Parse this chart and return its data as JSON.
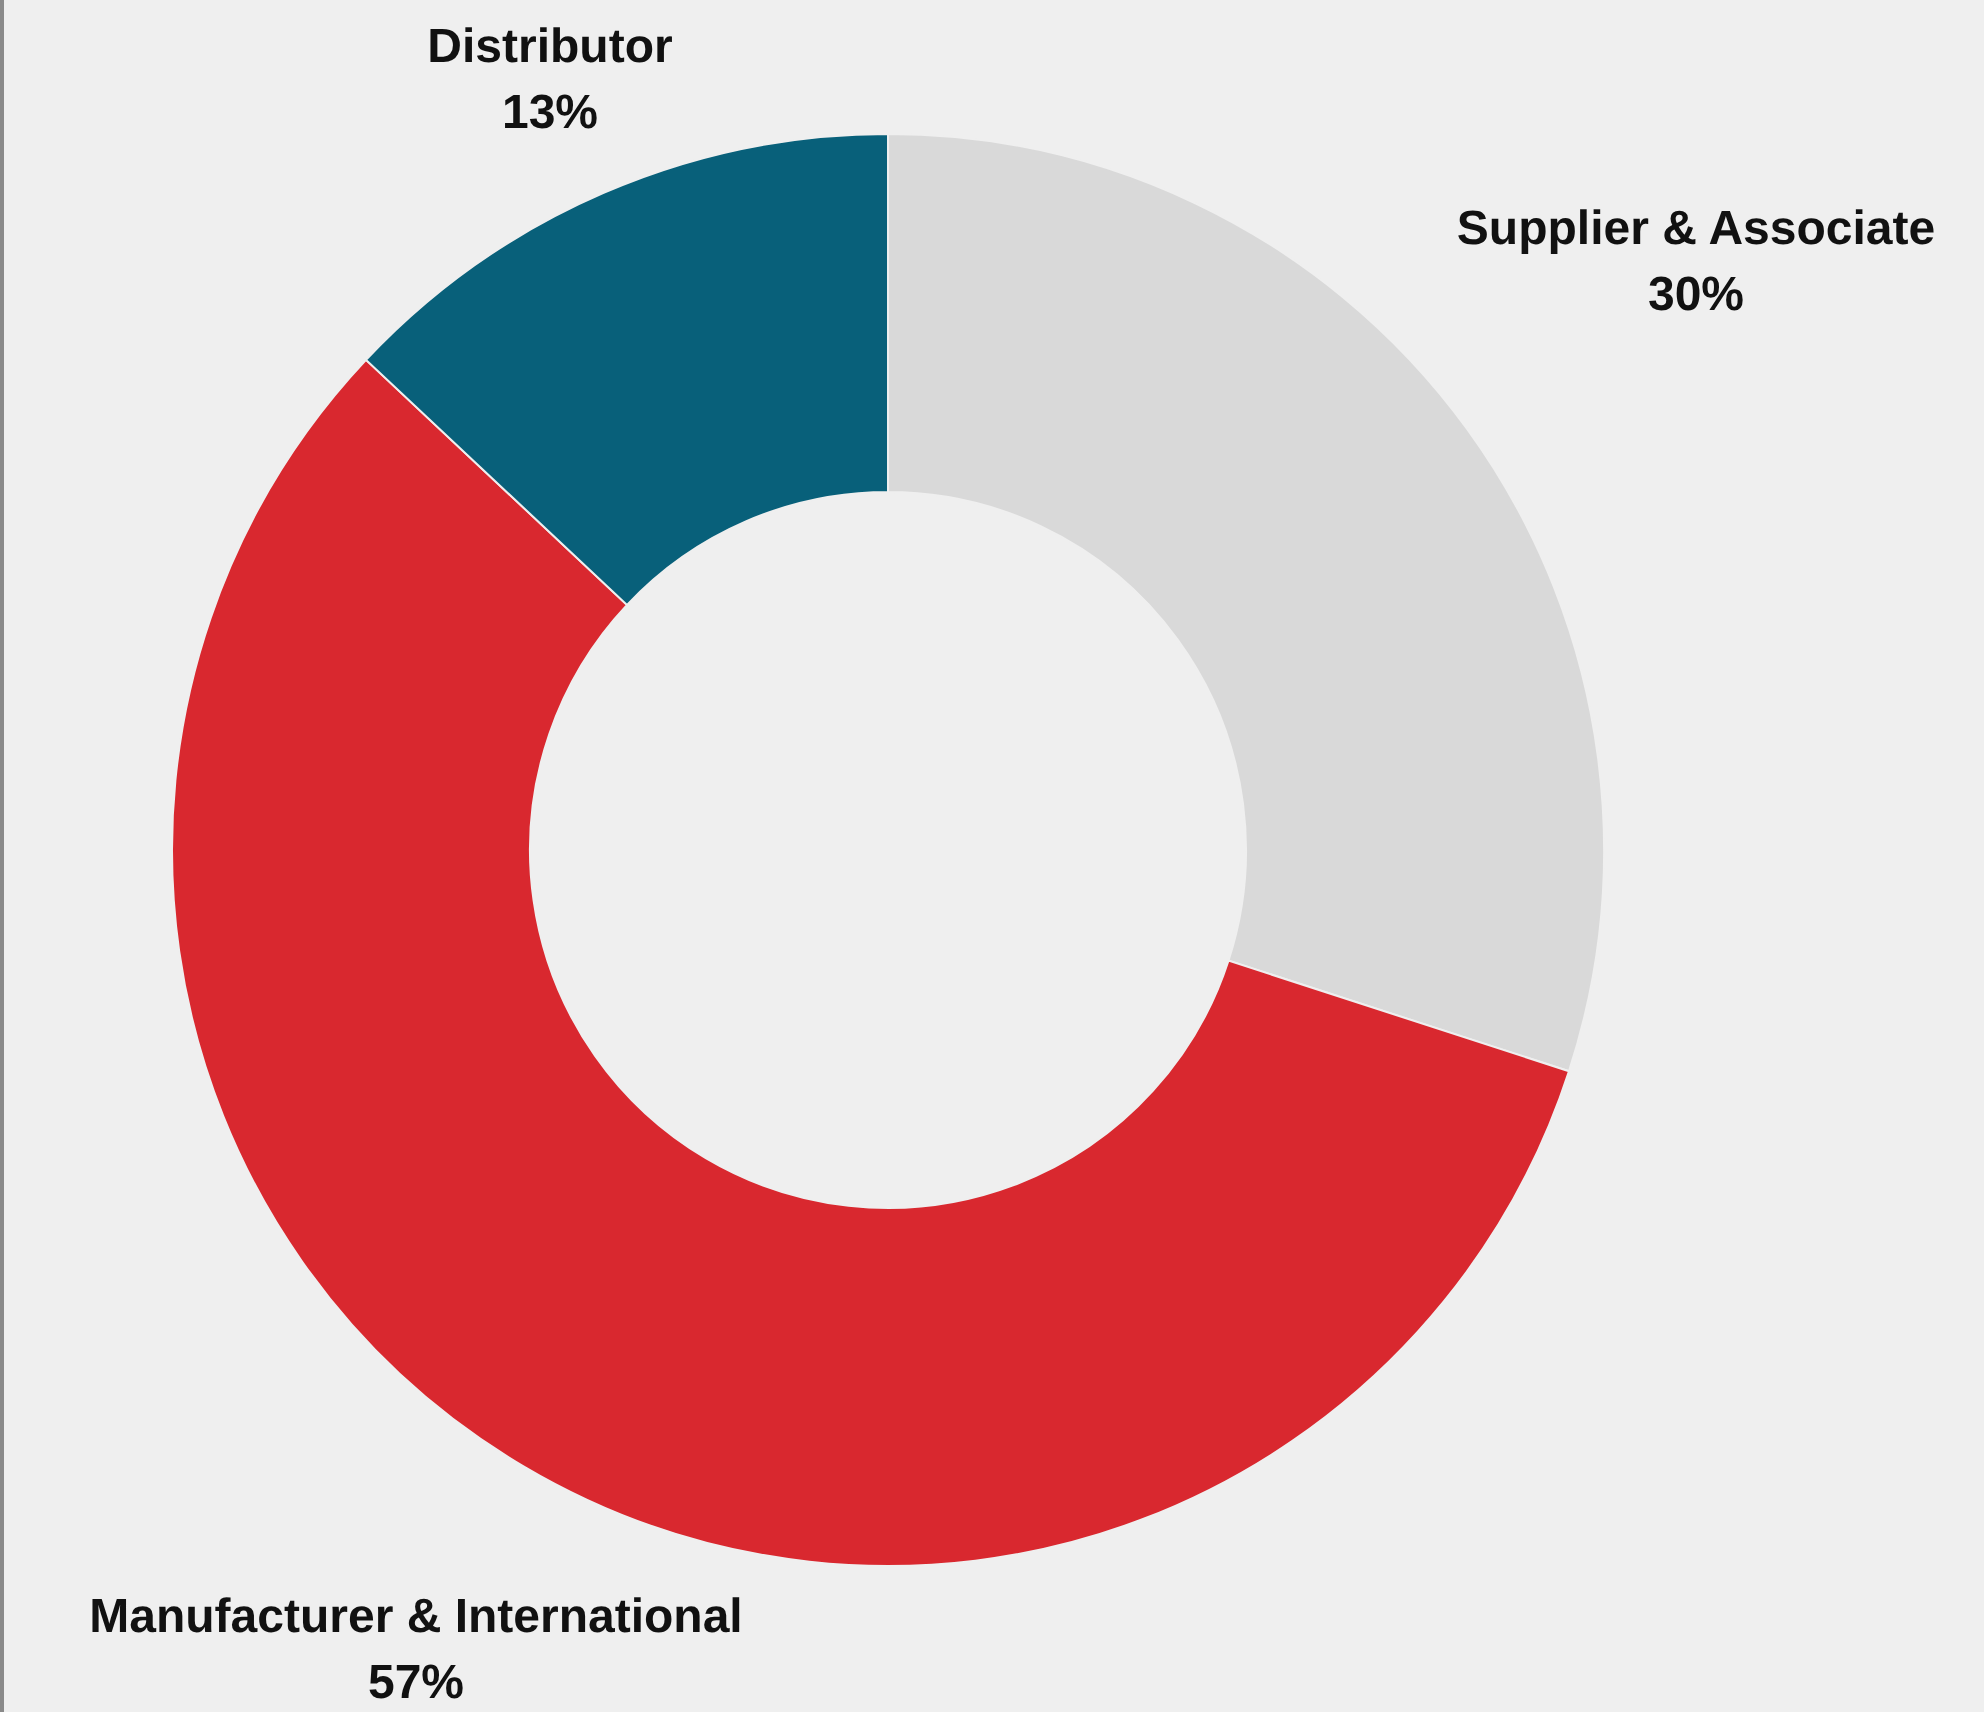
{
  "chart_data": {
    "type": "donut",
    "categories": [
      "Supplier & Associate",
      "Manufacturer & International",
      "Distributor"
    ],
    "values": [
      30,
      57,
      13
    ],
    "value_labels": [
      "30%",
      "57%",
      "13%"
    ],
    "colors": [
      "#d9d9d9",
      "#d9282f",
      "#08607a"
    ]
  }
}
